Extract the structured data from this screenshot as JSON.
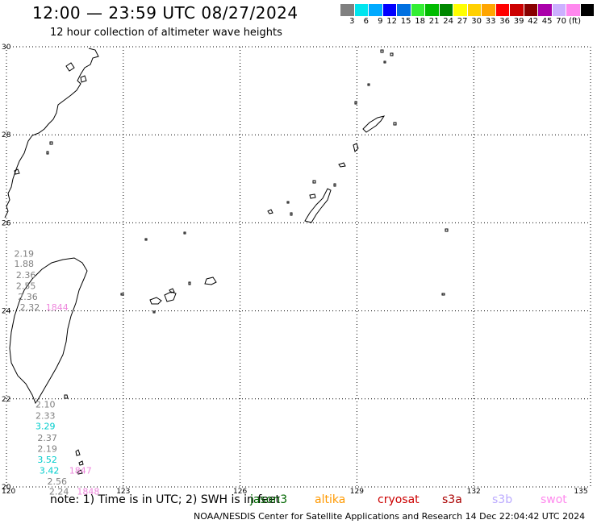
{
  "title": "12:00 — 23:59 UTC 08/27/2024",
  "subtitle": "12 hour collection of altimeter wave heights",
  "legend": {
    "colors": [
      "#808080",
      "#00e5ee",
      "#00aaff",
      "#0000ff",
      "#0070e0",
      "#33ee33",
      "#00bb00",
      "#008800",
      "#ffff00",
      "#ffd000",
      "#ffa500",
      "#ff0000",
      "#cc0000",
      "#880000",
      "#aa00aa",
      "#ccb0ff",
      "#ff88ee",
      "#000000"
    ],
    "ticks": [
      "3",
      "6",
      "9",
      "12",
      "15",
      "18",
      "21",
      "24",
      "27",
      "30",
      "33",
      "36",
      "39",
      "42",
      "45",
      "70",
      "(ft)"
    ]
  },
  "map": {
    "lon_range": [
      120,
      135
    ],
    "lat_range": [
      20,
      30
    ],
    "lon_ticks": [
      "120",
      "123",
      "126",
      "129",
      "132",
      "135"
    ],
    "lat_ticks": [
      "30",
      "28",
      "26",
      "24",
      "22",
      "20"
    ],
    "grid": "dotted"
  },
  "chart_data": {
    "type": "scatter",
    "xlabel": "",
    "ylabel": "",
    "xlim": [
      120,
      135
    ],
    "ylim": [
      20,
      30
    ],
    "points": [
      {
        "lon": 120.45,
        "lat": 25.3,
        "label": "2.19",
        "color": "#808080"
      },
      {
        "lon": 120.45,
        "lat": 25.07,
        "label": "1.88",
        "color": "#808080"
      },
      {
        "lon": 120.5,
        "lat": 24.82,
        "label": "2.36",
        "color": "#808080"
      },
      {
        "lon": 120.5,
        "lat": 24.57,
        "label": "2.55",
        "color": "#808080"
      },
      {
        "lon": 120.55,
        "lat": 24.32,
        "label": "2.36",
        "color": "#808080"
      },
      {
        "lon": 120.6,
        "lat": 24.08,
        "label": "2.32",
        "color": "#808080"
      },
      {
        "lon": 121.3,
        "lat": 24.08,
        "label": "1844",
        "color": "#ee88dd"
      },
      {
        "lon": 121.0,
        "lat": 21.88,
        "label": "2.10",
        "color": "#808080"
      },
      {
        "lon": 121.0,
        "lat": 21.62,
        "label": "2.33",
        "color": "#808080"
      },
      {
        "lon": 121.0,
        "lat": 21.38,
        "label": "3.29",
        "color": "#00cccc"
      },
      {
        "lon": 121.05,
        "lat": 21.12,
        "label": "2.37",
        "color": "#808080"
      },
      {
        "lon": 121.05,
        "lat": 20.87,
        "label": "2.19",
        "color": "#808080"
      },
      {
        "lon": 121.05,
        "lat": 20.62,
        "label": "3.52",
        "color": "#00cccc"
      },
      {
        "lon": 121.1,
        "lat": 20.38,
        "label": "3.42",
        "color": "#00cccc"
      },
      {
        "lon": 121.9,
        "lat": 20.38,
        "label": "1847",
        "color": "#ee88dd"
      },
      {
        "lon": 121.3,
        "lat": 20.13,
        "label": "2.56",
        "color": "#808080"
      },
      {
        "lon": 121.35,
        "lat": 19.9,
        "label": "2.24",
        "color": "#808080"
      },
      {
        "lon": 122.1,
        "lat": 19.9,
        "label": "1848",
        "color": "#ee88dd"
      }
    ]
  },
  "footer": {
    "note_prefix": "note:  1) Time is in UTC;  2) SWH is in feet",
    "satellites": [
      {
        "name": "jason3",
        "color": "#006600"
      },
      {
        "name": "altika",
        "color": "#ff9900"
      },
      {
        "name": "cryosat",
        "color": "#cc0000"
      },
      {
        "name": "s3a",
        "color": "#aa0000"
      },
      {
        "name": "s3b",
        "color": "#bbaaff"
      },
      {
        "name": "swot",
        "color": "#ff88ee"
      }
    ],
    "credit": "NOAA/NESDIS Center for Satellite Applications and Research    14 Dec 22:04:42 UTC 2024"
  }
}
